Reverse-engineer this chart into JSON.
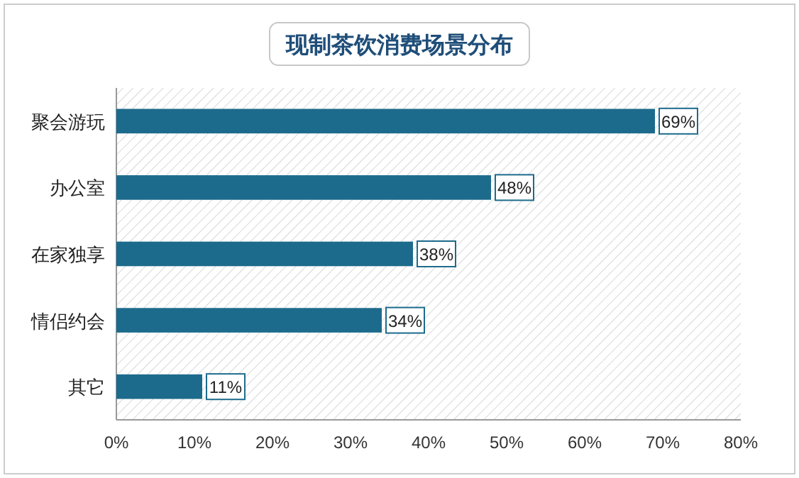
{
  "chart_data": {
    "type": "bar",
    "orientation": "horizontal",
    "title": "现制茶饮消费场景分布",
    "categories": [
      "聚会游玩",
      "办公室",
      "在家独享",
      "情侣约会",
      "其它"
    ],
    "values": [
      69,
      48,
      38,
      34,
      11
    ],
    "color": "#1d6b8c",
    "value_labels": [
      "69%",
      "48%",
      "38%",
      "34%",
      "11%"
    ],
    "xlim": [
      0,
      80
    ],
    "xticks": [
      {
        "value": 0,
        "label": "0%"
      },
      {
        "value": 10,
        "label": "10%"
      },
      {
        "value": 20,
        "label": "20%"
      },
      {
        "value": 30,
        "label": "30%"
      },
      {
        "value": 40,
        "label": "40%"
      },
      {
        "value": 50,
        "label": "50%"
      },
      {
        "value": 60,
        "label": "60%"
      },
      {
        "value": 70,
        "label": "70%"
      },
      {
        "value": 80,
        "label": "80%"
      }
    ],
    "grid": false
  }
}
